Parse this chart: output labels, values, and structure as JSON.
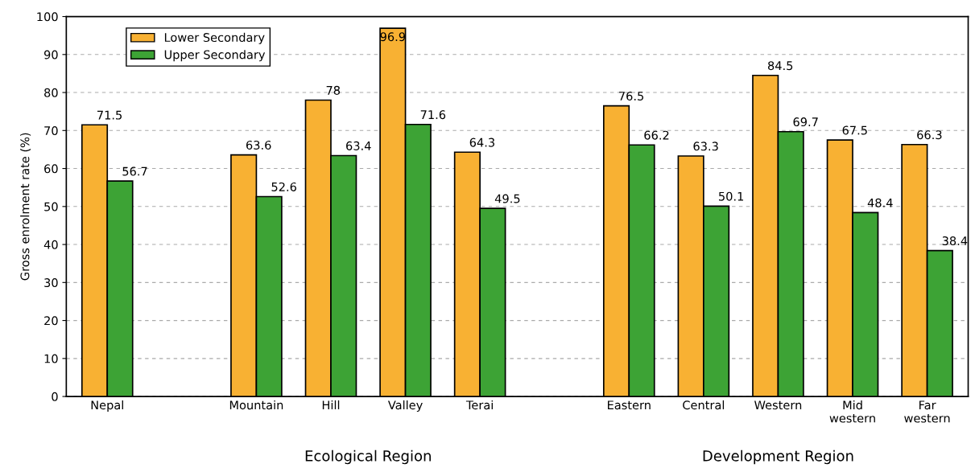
{
  "chart_data": {
    "type": "bar",
    "ylabel": "Gross enrolment rate (%)",
    "categories": [
      "Nepal",
      null,
      "Mountain",
      "Hill",
      "Valley",
      "Terai",
      null,
      "Eastern",
      "Central",
      "Western",
      "Mid\nwestern",
      "Far\nwestern"
    ],
    "series": [
      {
        "name": "Lower Secondary",
        "color": "#f8b133",
        "values": [
          71.5,
          null,
          63.6,
          78,
          96.9,
          64.3,
          null,
          76.5,
          63.3,
          84.5,
          67.5,
          66.3
        ]
      },
      {
        "name": "Upper Secondary",
        "color": "#3da335",
        "values": [
          56.7,
          null,
          52.6,
          63.4,
          71.6,
          49.5,
          null,
          66.2,
          50.1,
          69.7,
          48.4,
          38.4
        ]
      }
    ],
    "ylim": [
      0,
      100
    ],
    "yticks": [
      0,
      10,
      20,
      30,
      40,
      50,
      60,
      70,
      80,
      90,
      100
    ],
    "grid": "y",
    "legend": "top left",
    "data_labels": true,
    "annotations": [
      "Ecological Region",
      "Development Region"
    ]
  }
}
